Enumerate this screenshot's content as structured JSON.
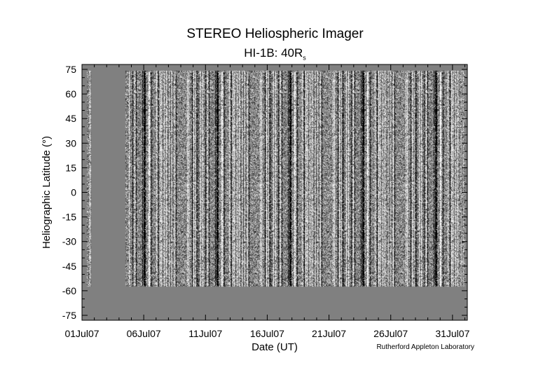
{
  "chart_data": {
    "type": "heatmap",
    "title": "STEREO Heliospheric Imager",
    "subtitle_main": "HI-1B: 40R",
    "subtitle_sub": "s",
    "xlabel": "Date (UT)",
    "ylabel": "Heliographic Latitude (°)",
    "x_tick_labels": [
      "01Jul07",
      "06Jul07",
      "11Jul07",
      "16Jul07",
      "21Jul07",
      "26Jul07",
      "31Jul07"
    ],
    "x_tick_days": [
      1,
      6,
      11,
      16,
      21,
      26,
      31
    ],
    "xlim_days": [
      1,
      32.2
    ],
    "y_ticks": [
      75,
      60,
      45,
      30,
      15,
      0,
      -15,
      -30,
      -45,
      -60,
      -75
    ],
    "ylim": [
      -78,
      78
    ],
    "data_coverage": {
      "day_range": [
        1.35,
        32.0
      ],
      "data_gap_days": [
        1.7,
        4.5
      ],
      "latitude_range": [
        -57.5,
        74.0
      ]
    },
    "colorscale": "grayscale",
    "missing_color": "#808080"
  },
  "credit": "Rutherford Appleton Laboratory"
}
